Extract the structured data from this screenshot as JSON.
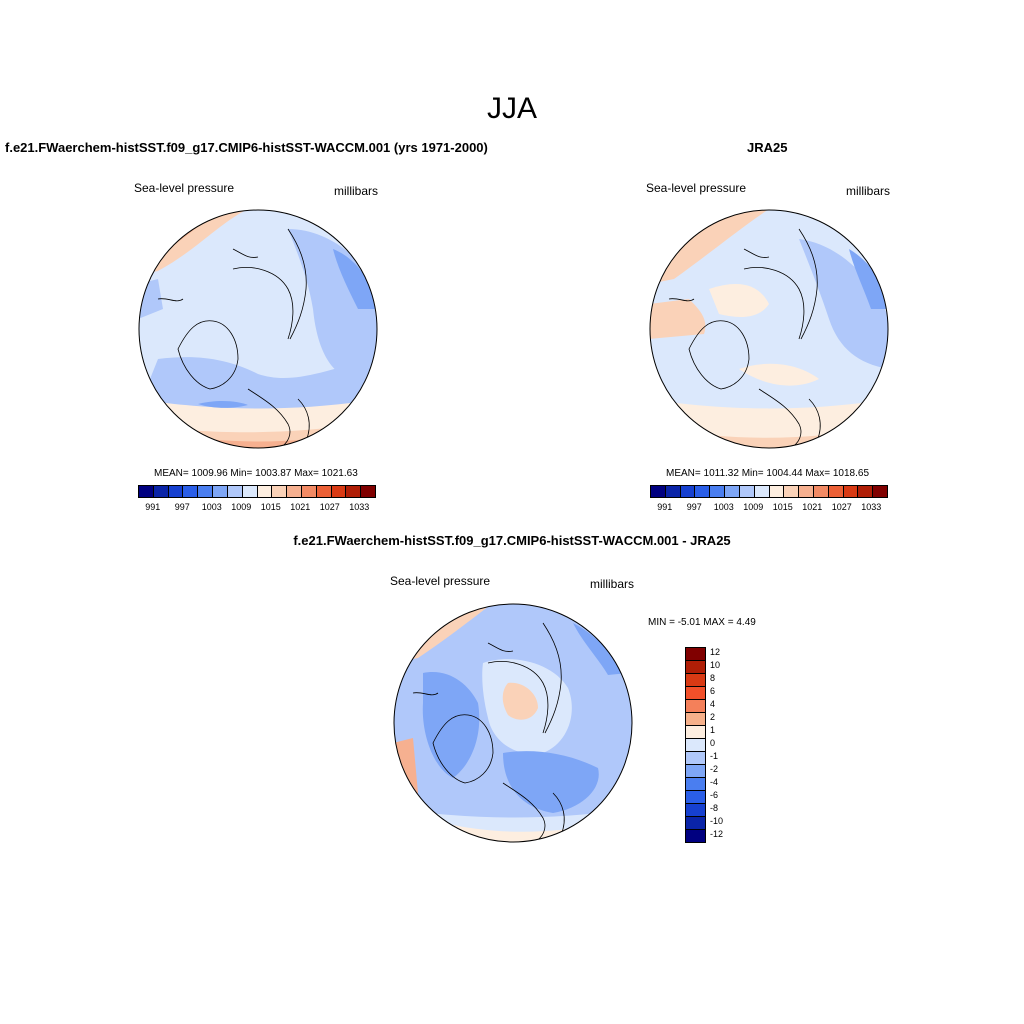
{
  "title": "JJA",
  "panels": [
    {
      "title": "f.e21.FWaerchem-histSST.f09_g17.CMIP6-histSST-WACCM.001 (yrs 1971-2000)",
      "variable": "Sea-level pressure",
      "units": "millibars",
      "stats": "MEAN= 1009.96  Min= 1003.87  Max= 1021.63"
    },
    {
      "title": "JRA25",
      "variable": "Sea-level pressure",
      "units": "millibars",
      "stats": "MEAN= 1011.32  Min= 1004.44  Max= 1018.65"
    },
    {
      "title": "f.e21.FWaerchem-histSST.f09_g17.CMIP6-histSST-WACCM.001 - JRA25",
      "variable": "Sea-level pressure",
      "units": "millibars",
      "stats": "MIN =  -5.01 MAX =   4.49"
    }
  ],
  "colorbar_abs": {
    "colors": [
      "#000080",
      "#0a24a8",
      "#1640d0",
      "#2a5ee8",
      "#4a7ef0",
      "#7ea6f6",
      "#b0c8fa",
      "#dbe8fc",
      "#fdeee0",
      "#fad2b8",
      "#f6b090",
      "#f28a64",
      "#ec6036",
      "#d93a14",
      "#b01e06",
      "#800000"
    ],
    "labels": [
      "991",
      "997",
      "1003",
      "1009",
      "1015",
      "1021",
      "1027",
      "1033"
    ]
  },
  "colorbar_diff": {
    "colors": [
      "#800000",
      "#b01e06",
      "#d93a14",
      "#f2502a",
      "#f4805a",
      "#f6b08a",
      "#fdeee0",
      "#dbe8fc",
      "#b0c8fa",
      "#7ea6f6",
      "#4a7ef0",
      "#2a5ee8",
      "#1640d0",
      "#0a24a8",
      "#000080"
    ],
    "labels": [
      "12",
      "10",
      "8",
      "6",
      "4",
      "2",
      "1",
      "0",
      "-1",
      "-2",
      "-4",
      "-6",
      "-8",
      "-10",
      "-12"
    ]
  }
}
